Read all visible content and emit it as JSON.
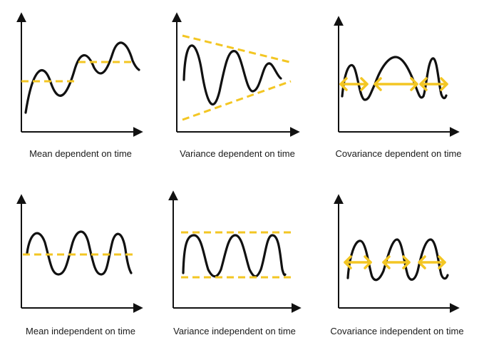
{
  "colors": {
    "curve": "#111111",
    "accent": "#f3c623",
    "axis": "#111111"
  },
  "panels": [
    {
      "caption": "Mean dependent on time",
      "kind": "mean-dependent"
    },
    {
      "caption": "Variance dependent on time",
      "kind": "variance-dependent"
    },
    {
      "caption": "Covariance dependent on time",
      "kind": "covariance-dependent"
    },
    {
      "caption": "Mean independent on time",
      "kind": "mean-independent"
    },
    {
      "caption": "Variance independent on time",
      "kind": "variance-independent"
    },
    {
      "caption": "Covariance independent on time",
      "kind": "covariance-independent"
    }
  ]
}
